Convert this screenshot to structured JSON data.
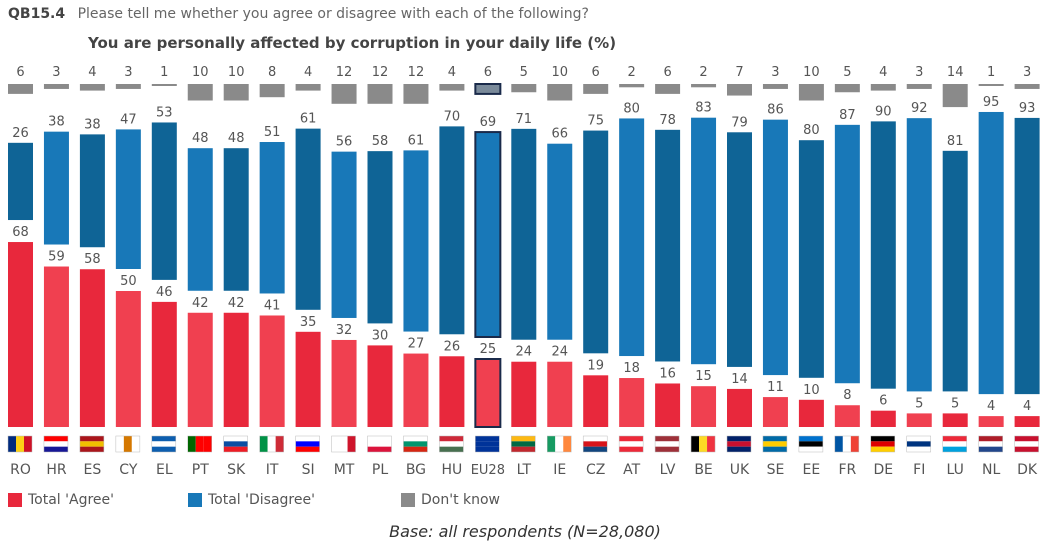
{
  "header": {
    "code": "QB15.4",
    "question": "Please tell me whether you agree or disagree with each of the following?",
    "subtitle": "You are personally affected by corruption in your daily life  (%)"
  },
  "footer": {
    "base": "Base: all respondents (N=28,080)"
  },
  "colors": {
    "agree": "#e8283c",
    "agree_alt": "#f04050",
    "disagree": "#0f6496",
    "disagree_alt": "#1878b8",
    "dontknow": "#8a8a8a",
    "eu_outline": "#1a2a4a"
  },
  "chart_data": {
    "type": "bar",
    "stacked": true,
    "categories": [
      "RO",
      "HR",
      "ES",
      "CY",
      "EL",
      "PT",
      "SK",
      "IT",
      "SI",
      "MT",
      "PL",
      "BG",
      "HU",
      "EU28",
      "LT",
      "IE",
      "CZ",
      "AT",
      "LV",
      "BE",
      "UK",
      "SE",
      "EE",
      "FR",
      "DE",
      "FI",
      "LU",
      "NL",
      "DK"
    ],
    "series": [
      {
        "name": "Total 'Agree'",
        "values": [
          68,
          59,
          58,
          50,
          46,
          42,
          42,
          41,
          35,
          32,
          30,
          27,
          26,
          25,
          24,
          24,
          19,
          18,
          16,
          15,
          14,
          11,
          10,
          8,
          6,
          5,
          5,
          4,
          4
        ]
      },
      {
        "name": "Total 'Disagree'",
        "values": [
          26,
          38,
          38,
          47,
          53,
          48,
          48,
          51,
          61,
          56,
          58,
          61,
          70,
          69,
          71,
          66,
          75,
          80,
          78,
          83,
          79,
          86,
          80,
          87,
          90,
          92,
          81,
          95,
          93
        ]
      },
      {
        "name": "Don't know",
        "values": [
          6,
          3,
          4,
          3,
          1,
          10,
          10,
          8,
          4,
          12,
          12,
          12,
          4,
          6,
          5,
          10,
          6,
          2,
          6,
          2,
          7,
          3,
          10,
          5,
          4,
          3,
          14,
          1,
          3
        ]
      }
    ],
    "highlight": "EU28",
    "legend_position": "bottom-left"
  },
  "flags": [
    "RO",
    "HR",
    "ES",
    "CY",
    "EL",
    "PT",
    "SK",
    "IT",
    "SI",
    "MT",
    "PL",
    "BG",
    "HU",
    "EU28",
    "LT",
    "IE",
    "CZ",
    "AT",
    "LV",
    "BE",
    "UK",
    "SE",
    "EE",
    "FR",
    "DE",
    "FI",
    "LU",
    "NL",
    "DK"
  ]
}
